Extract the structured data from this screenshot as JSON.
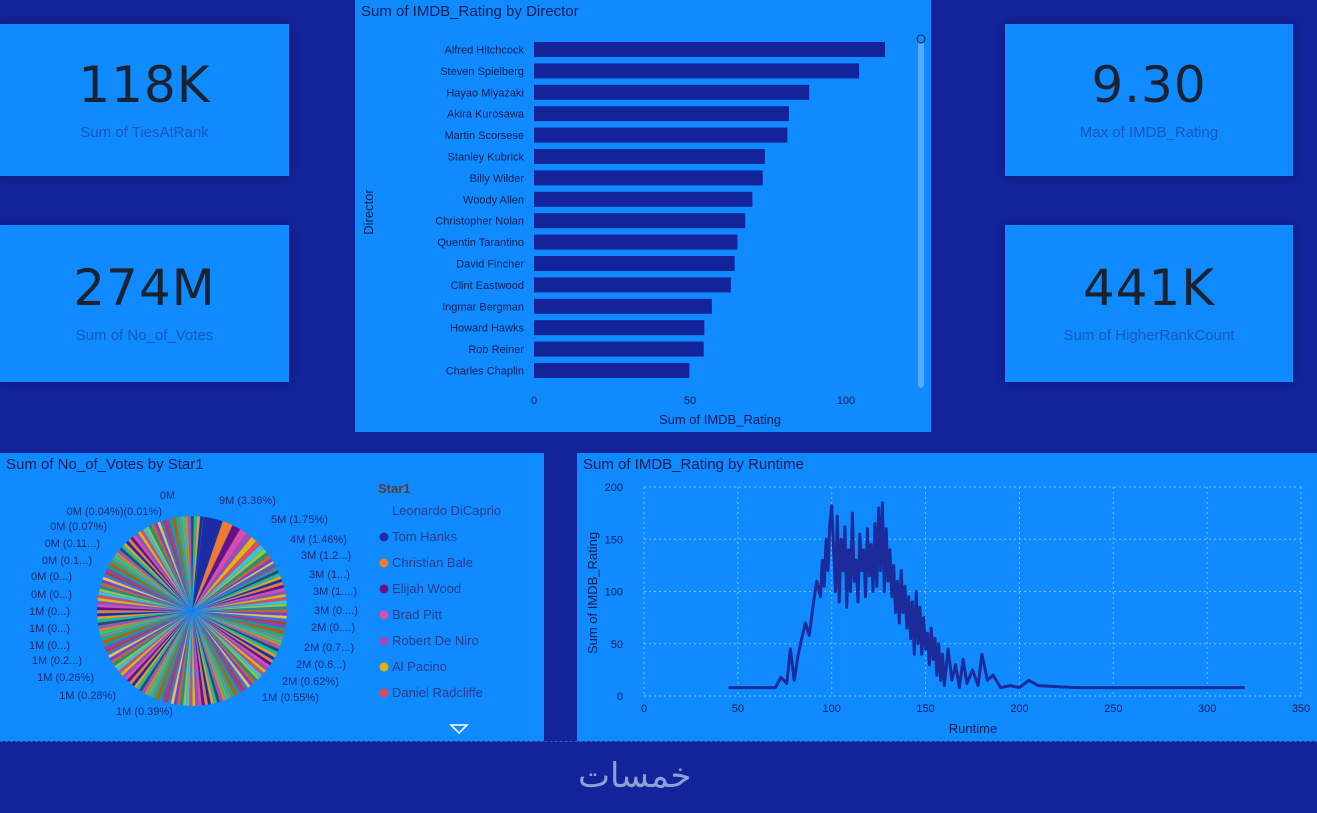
{
  "cards": [
    {
      "value": "118K",
      "label": "Sum of TiesAtRank"
    },
    {
      "value": "274M",
      "label": "Sum of No_of_Votes"
    },
    {
      "value": "9.30",
      "label": "Max of IMDB_Rating"
    },
    {
      "value": "441K",
      "label": "Sum of HigherRankCount"
    }
  ],
  "bar_chart": {
    "title": "Sum of IMDB_Rating by Director",
    "ylabel": "Director",
    "xlabel": "Sum of IMDB_Rating",
    "ticks": [
      "0",
      "50",
      "100"
    ]
  },
  "pie_chart": {
    "title": "Sum of No_of_Votes by Star1",
    "legend_title": "Star1",
    "legend_items": [
      {
        "name": "Leonardo DiCaprio",
        "color": ""
      },
      {
        "name": "Tom Hanks",
        "color": "#1c2da3"
      },
      {
        "name": "Christian Bale",
        "color": "#f27a2a"
      },
      {
        "name": "Elijah Wood",
        "color": "#6b0f86"
      },
      {
        "name": "Brad Pitt",
        "color": "#e04aa8"
      },
      {
        "name": "Robert De Niro",
        "color": "#a04ab8"
      },
      {
        "name": "Al Pacino",
        "color": "#e8b20c"
      },
      {
        "name": "Daniel Radcliffe",
        "color": "#e04b5a"
      }
    ],
    "right_labels": [
      "9M (3.36%)",
      "5M (1.75%)",
      "4M (1.46%)",
      "3M (1.2...)",
      "3M (1...)",
      "3M (1....)",
      "3M (0....)",
      "2M (0....)",
      "2M (0.7...)",
      "2M (0.6...)",
      "2M (0.62%)",
      "1M (0.55%)",
      "1M (0.39%)"
    ],
    "left_labels": [
      "0M",
      "0M (0.04%)(0.01%)",
      "0M (0.07%)",
      "0M (0.11...)",
      "0M (0.1...)",
      "0M (0...)",
      "0M (0...)",
      "1M (0...)",
      "1M (0...)",
      "1M (0...)",
      "1M (0.2...)",
      "1M (0.26%)",
      "1M (0.28%)"
    ]
  },
  "line_chart": {
    "title": "Sum of IMDB_Rating by Runtime",
    "ylabel": "Sum of IMDB_Rating",
    "xlabel": "Runtime"
  },
  "footer": {
    "logo_text": "خمسات"
  },
  "chart_data": [
    {
      "type": "bar",
      "title": "Sum of IMDB_Rating by Director",
      "ylabel": "Director",
      "xlabel": "Sum of IMDB_Rating",
      "categories": [
        "Alfred Hitchcock",
        "Steven Spielberg",
        "Hayao Miyazaki",
        "Akira Kurosawa",
        "Martin Scorsese",
        "Stanley Kubrick",
        "Billy Wilder",
        "Woody Allen",
        "Christopher Nolan",
        "Quentin Tarantino",
        "David Fincher",
        "Clint Eastwood",
        "Ingmar Bergman",
        "Howard Hawks",
        "Rob Reiner",
        "Charles Chaplin"
      ],
      "values": [
        112.5,
        104.2,
        88.2,
        81.7,
        81.2,
        74.0,
        73.3,
        70.0,
        67.7,
        65.2,
        64.3,
        63.1,
        57.0,
        54.6,
        54.4,
        49.8
      ],
      "xlim": [
        0,
        120
      ]
    },
    {
      "type": "pie",
      "title": "Sum of No_of_Votes by Star1",
      "legend_title": "Star1",
      "slice_percents": [
        3.36,
        1.75,
        1.46,
        1.2,
        1.1,
        1.05,
        0.95,
        0.85,
        0.75,
        0.65,
        0.62,
        0.55,
        0.39,
        0.28,
        0.26,
        0.2,
        0.15,
        0.12,
        0.11,
        0.1,
        0.07,
        0.04,
        0.01
      ]
    },
    {
      "type": "line",
      "title": "Sum of IMDB_Rating by Runtime",
      "xlabel": "Runtime",
      "ylabel": "Sum of IMDB_Rating",
      "xlim": [
        0,
        350
      ],
      "ylim": [
        0,
        200
      ],
      "xticks": [
        0,
        50,
        100,
        150,
        200,
        250,
        300,
        350
      ],
      "yticks": [
        0,
        50,
        100,
        150,
        200
      ],
      "x": [
        45,
        60,
        70,
        73,
        76,
        78,
        80,
        82,
        84,
        86,
        88,
        90,
        92,
        94,
        95,
        96,
        97,
        98,
        99,
        100,
        101,
        102,
        103,
        104,
        105,
        106,
        107,
        108,
        109,
        110,
        111,
        112,
        113,
        114,
        115,
        116,
        117,
        118,
        119,
        120,
        121,
        122,
        123,
        124,
        125,
        126,
        127,
        128,
        129,
        130,
        131,
        132,
        133,
        134,
        135,
        136,
        137,
        138,
        139,
        140,
        141,
        142,
        143,
        144,
        145,
        146,
        147,
        148,
        149,
        150,
        151,
        152,
        153,
        154,
        155,
        156,
        157,
        158,
        159,
        160,
        162,
        164,
        166,
        168,
        170,
        172,
        175,
        178,
        180,
        183,
        186,
        190,
        195,
        200,
        205,
        210,
        230,
        260,
        290,
        320
      ],
      "y": [
        8,
        8,
        8,
        18,
        12,
        45,
        15,
        38,
        55,
        70,
        58,
        85,
        110,
        95,
        130,
        105,
        150,
        120,
        165,
        182,
        140,
        100,
        172,
        90,
        150,
        120,
        162,
        85,
        140,
        100,
        175,
        110,
        130,
        90,
        155,
        120,
        140,
        95,
        160,
        115,
        145,
        100,
        165,
        105,
        180,
        120,
        185,
        100,
        160,
        110,
        140,
        95,
        125,
        80,
        110,
        70,
        120,
        80,
        105,
        65,
        95,
        55,
        90,
        40,
        100,
        50,
        85,
        40,
        75,
        45,
        60,
        30,
        65,
        35,
        55,
        20,
        50,
        15,
        40,
        10,
        45,
        15,
        30,
        8,
        35,
        12,
        25,
        10,
        40,
        15,
        20,
        8,
        10,
        8,
        15,
        10,
        8,
        8,
        8,
        8
      ]
    }
  ]
}
